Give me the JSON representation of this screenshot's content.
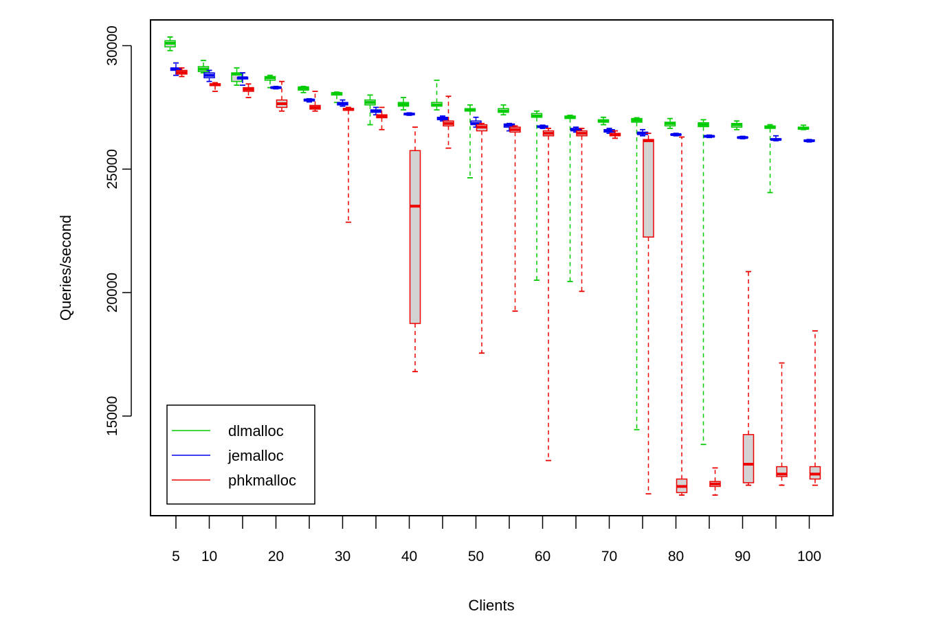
{
  "chart_data": {
    "type": "boxplot",
    "title": "",
    "xlabel": "Clients",
    "ylabel": "Queries/second",
    "ylim": [
      11500,
      31000
    ],
    "y_ticks": [
      15000,
      20000,
      25000,
      30000
    ],
    "x_tick_labels": [
      "5",
      "10",
      "20",
      "30",
      "40",
      "50",
      "60",
      "70",
      "80",
      "90",
      "100"
    ],
    "x_tick_positions": [
      5,
      10,
      20,
      30,
      40,
      50,
      60,
      70,
      80,
      90,
      100
    ],
    "grid": false,
    "legend_position": "bottom-left",
    "series": [
      {
        "name": "dlmalloc",
        "color": "#00CC00",
        "boxes": [
          {
            "clients": 5,
            "whisker_low": 29800,
            "q1": 29950,
            "median": 30100,
            "q3": 30200,
            "whisker_high": 30350
          },
          {
            "clients": 10,
            "whisker_low": 28900,
            "q1": 28950,
            "median": 29050,
            "q3": 29150,
            "whisker_high": 29400
          },
          {
            "clients": 15,
            "whisker_low": 28400,
            "q1": 28550,
            "median": 28850,
            "q3": 28900,
            "whisker_high": 29100
          },
          {
            "clients": 20,
            "whisker_low": 28300,
            "q1": 28600,
            "median": 28700,
            "q3": 28750,
            "whisker_high": 28800
          },
          {
            "clients": 25,
            "whisker_low": 28100,
            "q1": 28200,
            "median": 28280,
            "q3": 28330,
            "whisker_high": 28350
          },
          {
            "clients": 30,
            "whisker_low": 27700,
            "q1": 28000,
            "median": 28050,
            "q3": 28100,
            "whisker_high": 28120
          },
          {
            "clients": 35,
            "whisker_low": 26800,
            "q1": 27600,
            "median": 27700,
            "q3": 27800,
            "whisker_high": 28000
          },
          {
            "clients": 40,
            "whisker_low": 27400,
            "q1": 27550,
            "median": 27620,
            "q3": 27700,
            "whisker_high": 27900
          },
          {
            "clients": 45,
            "whisker_low": 27400,
            "q1": 27550,
            "median": 27600,
            "q3": 27700,
            "whisker_high": 28600
          },
          {
            "clients": 50,
            "whisker_low": 24650,
            "q1": 27350,
            "median": 27400,
            "q3": 27450,
            "whisker_high": 27600
          },
          {
            "clients": 55,
            "whisker_low": 27200,
            "q1": 27300,
            "median": 27350,
            "q3": 27450,
            "whisker_high": 27600
          },
          {
            "clients": 60,
            "whisker_low": 20500,
            "q1": 27100,
            "median": 27150,
            "q3": 27250,
            "whisker_high": 27350
          },
          {
            "clients": 65,
            "whisker_low": 20450,
            "q1": 27050,
            "median": 27100,
            "q3": 27150,
            "whisker_high": 27180
          },
          {
            "clients": 70,
            "whisker_low": 26800,
            "q1": 26900,
            "median": 26950,
            "q3": 27000,
            "whisker_high": 27100
          },
          {
            "clients": 75,
            "whisker_low": 14450,
            "q1": 26900,
            "median": 26980,
            "q3": 27050,
            "whisker_high": 27080
          },
          {
            "clients": 80,
            "whisker_low": 26650,
            "q1": 26750,
            "median": 26850,
            "q3": 26900,
            "whisker_high": 27050
          },
          {
            "clients": 85,
            "whisker_low": 13850,
            "q1": 26720,
            "median": 26800,
            "q3": 26880,
            "whisker_high": 27000
          },
          {
            "clients": 90,
            "whisker_low": 26600,
            "q1": 26700,
            "median": 26800,
            "q3": 26850,
            "whisker_high": 26950
          },
          {
            "clients": 95,
            "whisker_low": 24050,
            "q1": 26650,
            "median": 26700,
            "q3": 26750,
            "whisker_high": 26800
          },
          {
            "clients": 100,
            "whisker_low": 26600,
            "q1": 26620,
            "median": 26650,
            "q3": 26700,
            "whisker_high": 26780
          }
        ]
      },
      {
        "name": "jemalloc",
        "color": "#0000EE",
        "boxes": [
          {
            "clients": 5,
            "whisker_low": 28800,
            "q1": 29000,
            "median": 29050,
            "q3": 29100,
            "whisker_high": 29300
          },
          {
            "clients": 10,
            "whisker_low": 28550,
            "q1": 28700,
            "median": 28800,
            "q3": 28900,
            "whisker_high": 29000
          },
          {
            "clients": 15,
            "whisker_low": 28400,
            "q1": 28650,
            "median": 28700,
            "q3": 28720,
            "whisker_high": 28900
          },
          {
            "clients": 20,
            "whisker_low": 28250,
            "q1": 28280,
            "median": 28300,
            "q3": 28330,
            "whisker_high": 28350
          },
          {
            "clients": 25,
            "whisker_low": 27720,
            "q1": 27760,
            "median": 27800,
            "q3": 27830,
            "whisker_high": 27850
          },
          {
            "clients": 30,
            "whisker_low": 27550,
            "q1": 27600,
            "median": 27650,
            "q3": 27700,
            "whisker_high": 27800
          },
          {
            "clients": 35,
            "whisker_low": 27200,
            "q1": 27300,
            "median": 27350,
            "q3": 27400,
            "whisker_high": 27500
          },
          {
            "clients": 40,
            "whisker_low": 27180,
            "q1": 27200,
            "median": 27230,
            "q3": 27260,
            "whisker_high": 27280
          },
          {
            "clients": 45,
            "whisker_low": 26950,
            "q1": 27000,
            "median": 27050,
            "q3": 27100,
            "whisker_high": 27150
          },
          {
            "clients": 50,
            "whisker_low": 26700,
            "q1": 26800,
            "median": 26850,
            "q3": 26950,
            "whisker_high": 27100
          },
          {
            "clients": 55,
            "whisker_low": 26550,
            "q1": 26700,
            "median": 26780,
            "q3": 26830,
            "whisker_high": 26850
          },
          {
            "clients": 60,
            "whisker_low": 26650,
            "q1": 26700,
            "median": 26720,
            "q3": 26750,
            "whisker_high": 26780
          },
          {
            "clients": 65,
            "whisker_low": 26500,
            "q1": 26550,
            "median": 26600,
            "q3": 26650,
            "whisker_high": 26700
          },
          {
            "clients": 70,
            "whisker_low": 26450,
            "q1": 26500,
            "median": 26550,
            "q3": 26600,
            "whisker_high": 26650
          },
          {
            "clients": 75,
            "whisker_low": 26350,
            "q1": 26400,
            "median": 26450,
            "q3": 26500,
            "whisker_high": 26600
          },
          {
            "clients": 80,
            "whisker_low": 26350,
            "q1": 26380,
            "median": 26400,
            "q3": 26420,
            "whisker_high": 26450
          },
          {
            "clients": 85,
            "whisker_low": 26280,
            "q1": 26300,
            "median": 26330,
            "q3": 26350,
            "whisker_high": 26380
          },
          {
            "clients": 90,
            "whisker_low": 26230,
            "q1": 26260,
            "median": 26280,
            "q3": 26300,
            "whisker_high": 26330
          },
          {
            "clients": 95,
            "whisker_low": 26150,
            "q1": 26180,
            "median": 26200,
            "q3": 26230,
            "whisker_high": 26350
          },
          {
            "clients": 100,
            "whisker_low": 26100,
            "q1": 26130,
            "median": 26150,
            "q3": 26180,
            "whisker_high": 26200
          }
        ]
      },
      {
        "name": "phkmalloc",
        "color": "#EE0000",
        "boxes": [
          {
            "clients": 5,
            "whisker_low": 28750,
            "q1": 28850,
            "median": 28920,
            "q3": 29000,
            "whisker_high": 29100
          },
          {
            "clients": 10,
            "whisker_low": 28150,
            "q1": 28380,
            "median": 28420,
            "q3": 28460,
            "whisker_high": 28500
          },
          {
            "clients": 15,
            "whisker_low": 27900,
            "q1": 28150,
            "median": 28230,
            "q3": 28300,
            "whisker_high": 28450
          },
          {
            "clients": 20,
            "whisker_low": 27350,
            "q1": 27500,
            "median": 27650,
            "q3": 27800,
            "whisker_high": 28550
          },
          {
            "clients": 25,
            "whisker_low": 27350,
            "q1": 27430,
            "median": 27500,
            "q3": 27580,
            "whisker_high": 28150
          },
          {
            "clients": 30,
            "whisker_low": 22850,
            "q1": 27380,
            "median": 27420,
            "q3": 27460,
            "whisker_high": 27500
          },
          {
            "clients": 35,
            "whisker_low": 26600,
            "q1": 27080,
            "median": 27150,
            "q3": 27200,
            "whisker_high": 27500
          },
          {
            "clients": 40,
            "whisker_low": 16800,
            "q1": 18750,
            "median": 23500,
            "q3": 25750,
            "whisker_high": 26700
          },
          {
            "clients": 45,
            "whisker_low": 25850,
            "q1": 26750,
            "median": 26850,
            "q3": 26950,
            "whisker_high": 27950
          },
          {
            "clients": 50,
            "whisker_low": 17550,
            "q1": 26550,
            "median": 26700,
            "q3": 26800,
            "whisker_high": 26850
          },
          {
            "clients": 55,
            "whisker_low": 19250,
            "q1": 26500,
            "median": 26600,
            "q3": 26700,
            "whisker_high": 26750
          },
          {
            "clients": 60,
            "whisker_low": 13200,
            "q1": 26350,
            "median": 26450,
            "q3": 26550,
            "whisker_high": 26650
          },
          {
            "clients": 65,
            "whisker_low": 20050,
            "q1": 26350,
            "median": 26450,
            "q3": 26550,
            "whisker_high": 26650
          },
          {
            "clients": 70,
            "whisker_low": 26250,
            "q1": 26350,
            "median": 26400,
            "q3": 26450,
            "whisker_high": 26550
          },
          {
            "clients": 75,
            "whisker_low": 11850,
            "q1": 22250,
            "median": 26150,
            "q3": 26200,
            "whisker_high": 26450
          },
          {
            "clients": 80,
            "whisker_low": 11800,
            "q1": 11900,
            "median": 12150,
            "q3": 12450,
            "whisker_high": 26300
          },
          {
            "clients": 85,
            "whisker_low": 11800,
            "q1": 12150,
            "median": 12250,
            "q3": 12350,
            "whisker_high": 12900
          },
          {
            "clients": 90,
            "whisker_low": 12200,
            "q1": 12300,
            "median": 13050,
            "q3": 14250,
            "whisker_high": 20850
          },
          {
            "clients": 95,
            "whisker_low": 12200,
            "q1": 12550,
            "median": 12650,
            "q3": 12950,
            "whisker_high": 17150
          },
          {
            "clients": 100,
            "whisker_low": 12200,
            "q1": 12450,
            "median": 12650,
            "q3": 12950,
            "whisker_high": 18450
          }
        ]
      }
    ]
  }
}
